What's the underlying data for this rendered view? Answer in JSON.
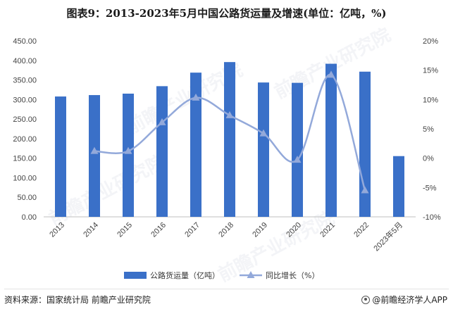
{
  "title": "图表9：2013-2023年5月中国公路货运量及增速(单位：亿吨，%)",
  "source": "资料来源：国家统计局 前瞻产业研究院",
  "brand": "@前瞻经济学人APP",
  "watermark": "前瞻产业研究院",
  "colors": {
    "bar": "#3a70c8",
    "line": "#93a9da",
    "axis": "#bfbfbf",
    "grid": "#e6e6e6"
  },
  "chart_data": {
    "type": "bar",
    "categories": [
      "2013",
      "2014",
      "2015",
      "2016",
      "2017",
      "2018",
      "2019",
      "2020",
      "2021",
      "2022",
      "2023年5月"
    ],
    "series": [
      {
        "name": "公路货运量（亿吨）",
        "type": "bar",
        "axis": "left",
        "values": [
          307.7,
          311.3,
          315.0,
          334.1,
          368.7,
          395.7,
          343.5,
          342.6,
          391.4,
          371.2,
          155.3
        ]
      },
      {
        "name": "同比增长（%）",
        "type": "line",
        "axis": "right",
        "values": [
          null,
          1.2,
          1.2,
          6.1,
          10.3,
          7.3,
          4.2,
          -0.3,
          14.2,
          -5.5,
          null
        ]
      }
    ],
    "ylim_left": [
      0,
      450
    ],
    "yticks_left": [
      "0.00",
      "50.00",
      "100.00",
      "150.00",
      "200.00",
      "250.00",
      "300.00",
      "350.00",
      "400.00",
      "450.00"
    ],
    "ylim_right": [
      -10,
      20
    ],
    "yticks_right": [
      "-10%",
      "-5%",
      "0%",
      "5%",
      "10%",
      "15%",
      "20%"
    ],
    "grid": false,
    "legend": "bottom"
  }
}
